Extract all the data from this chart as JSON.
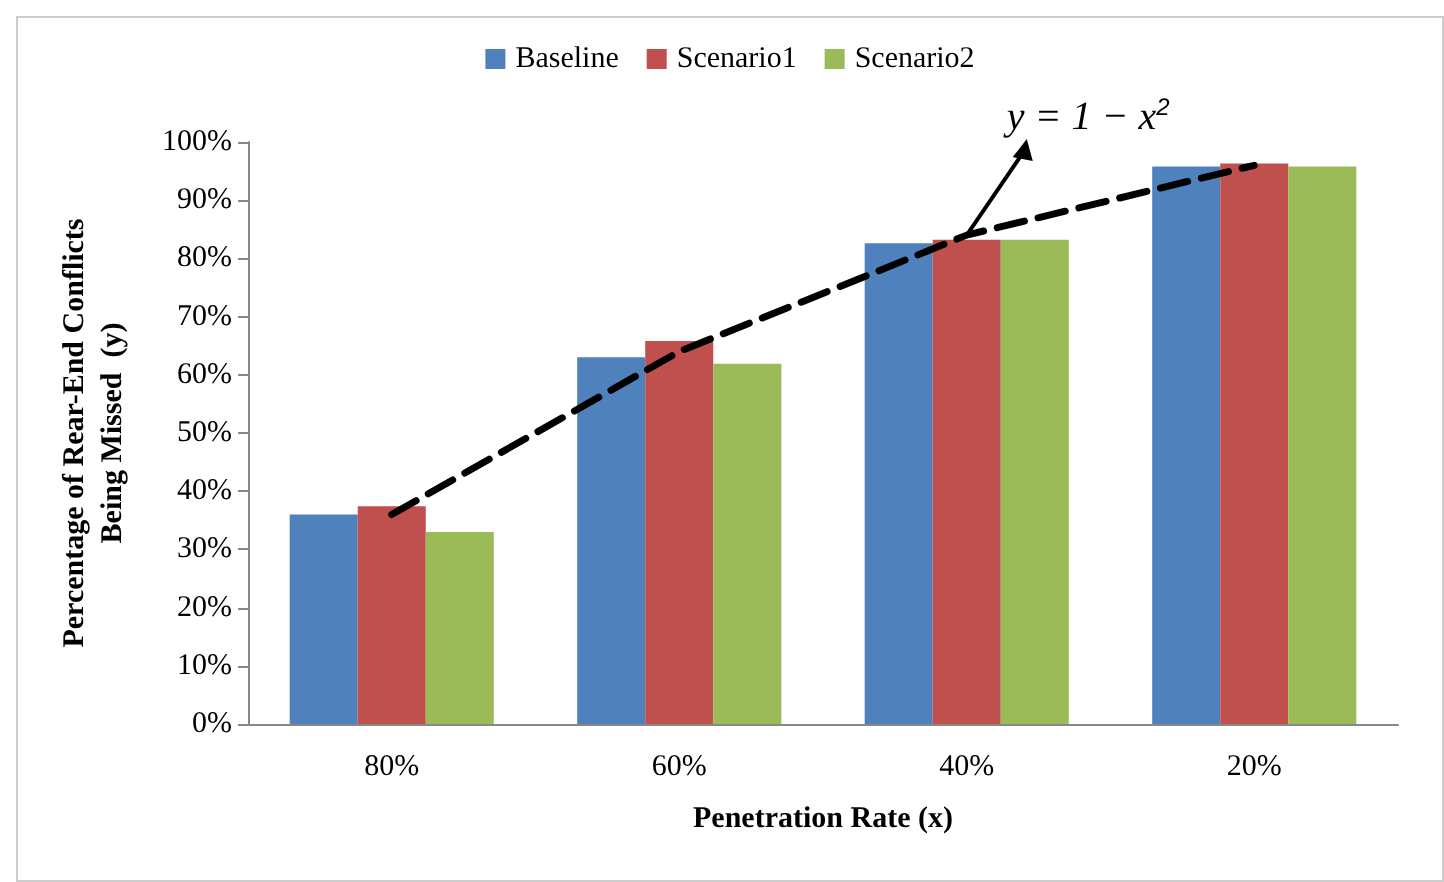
{
  "chart_data": {
    "type": "bar",
    "categories": [
      "80%",
      "60%",
      "40%",
      "20%"
    ],
    "series": [
      {
        "name": "Baseline",
        "color": "#4f81bd",
        "values": [
          36,
          63,
          82.6,
          95.8
        ]
      },
      {
        "name": "Scenario1",
        "color": "#c0504d",
        "values": [
          37.4,
          65.8,
          83.2,
          96.3
        ]
      },
      {
        "name": "Scenario2",
        "color": "#9bbb59",
        "values": [
          33,
          61.9,
          83.2,
          95.8
        ]
      },
      {
        "type": "line",
        "color": "#000000",
        "line_style": "dashed",
        "marker": "none",
        "values": [
          36,
          64,
          84,
          96
        ]
      }
    ],
    "xlabel": "Penetration Rate (x)",
    "ylabel": "Percentage of Rear-End Conflicts\nBeing Missed  (y)",
    "ylim": [
      0,
      100
    ],
    "yticks": [
      {
        "value": 0,
        "label": "0%"
      },
      {
        "value": 10,
        "label": "10%"
      },
      {
        "value": 20,
        "label": "20%"
      },
      {
        "value": 30,
        "label": "30%"
      },
      {
        "value": 40,
        "label": "40%"
      },
      {
        "value": 50,
        "label": "50%"
      },
      {
        "value": 60,
        "label": "60%"
      },
      {
        "value": 70,
        "label": "70%"
      },
      {
        "value": 80,
        "label": "80%"
      },
      {
        "value": 90,
        "label": "90%"
      },
      {
        "value": 100,
        "label": "100%"
      }
    ],
    "annotations": [
      {
        "text": "y = 1 − x$^{2}$",
        "x": "40%",
        "y": 84
      }
    ],
    "grid": false,
    "legend": "top"
  }
}
